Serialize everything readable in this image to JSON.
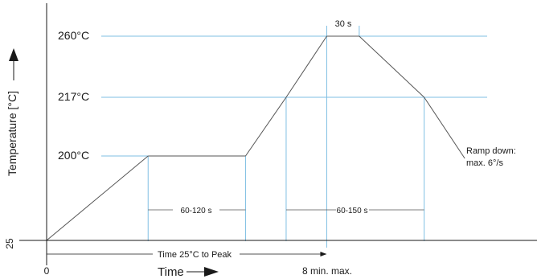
{
  "colors": {
    "profile": "#555555",
    "guide": "#7fbfe3",
    "axis": "#1a1a1a",
    "text": "#1a1a1a"
  },
  "chart_data": {
    "type": "line",
    "title": "",
    "ylabel": "Temperature [°C]",
    "xlabel": "Time",
    "x_ticks": [
      {
        "text": "0"
      },
      {
        "text": "8 min. max."
      }
    ],
    "y_ticks": [
      {
        "text": "25"
      },
      {
        "text": "200°C"
      },
      {
        "text": "217°C"
      },
      {
        "text": "260°C"
      }
    ],
    "series": [
      {
        "points": [
          {
            "t": 0,
            "temp": 25
          },
          {
            "t": 2.5,
            "temp": 200
          },
          {
            "t": 4.9,
            "temp": 200
          },
          {
            "t": 5.9,
            "temp": 217
          },
          {
            "t": 6.9,
            "temp": 260
          },
          {
            "t": 7.7,
            "temp": 260
          },
          {
            "t": 9.3,
            "temp": 217
          },
          {
            "t": 10.3,
            "temp": 195
          }
        ]
      }
    ],
    "annotations": {
      "soak": "60-120 s",
      "liquidus": "60-150 s",
      "peak": "30 s",
      "time_to_peak": "Time 25°C to Peak",
      "ramp_down_line1": "Ramp down:",
      "ramp_down_line2": "max. 6°/s"
    }
  }
}
